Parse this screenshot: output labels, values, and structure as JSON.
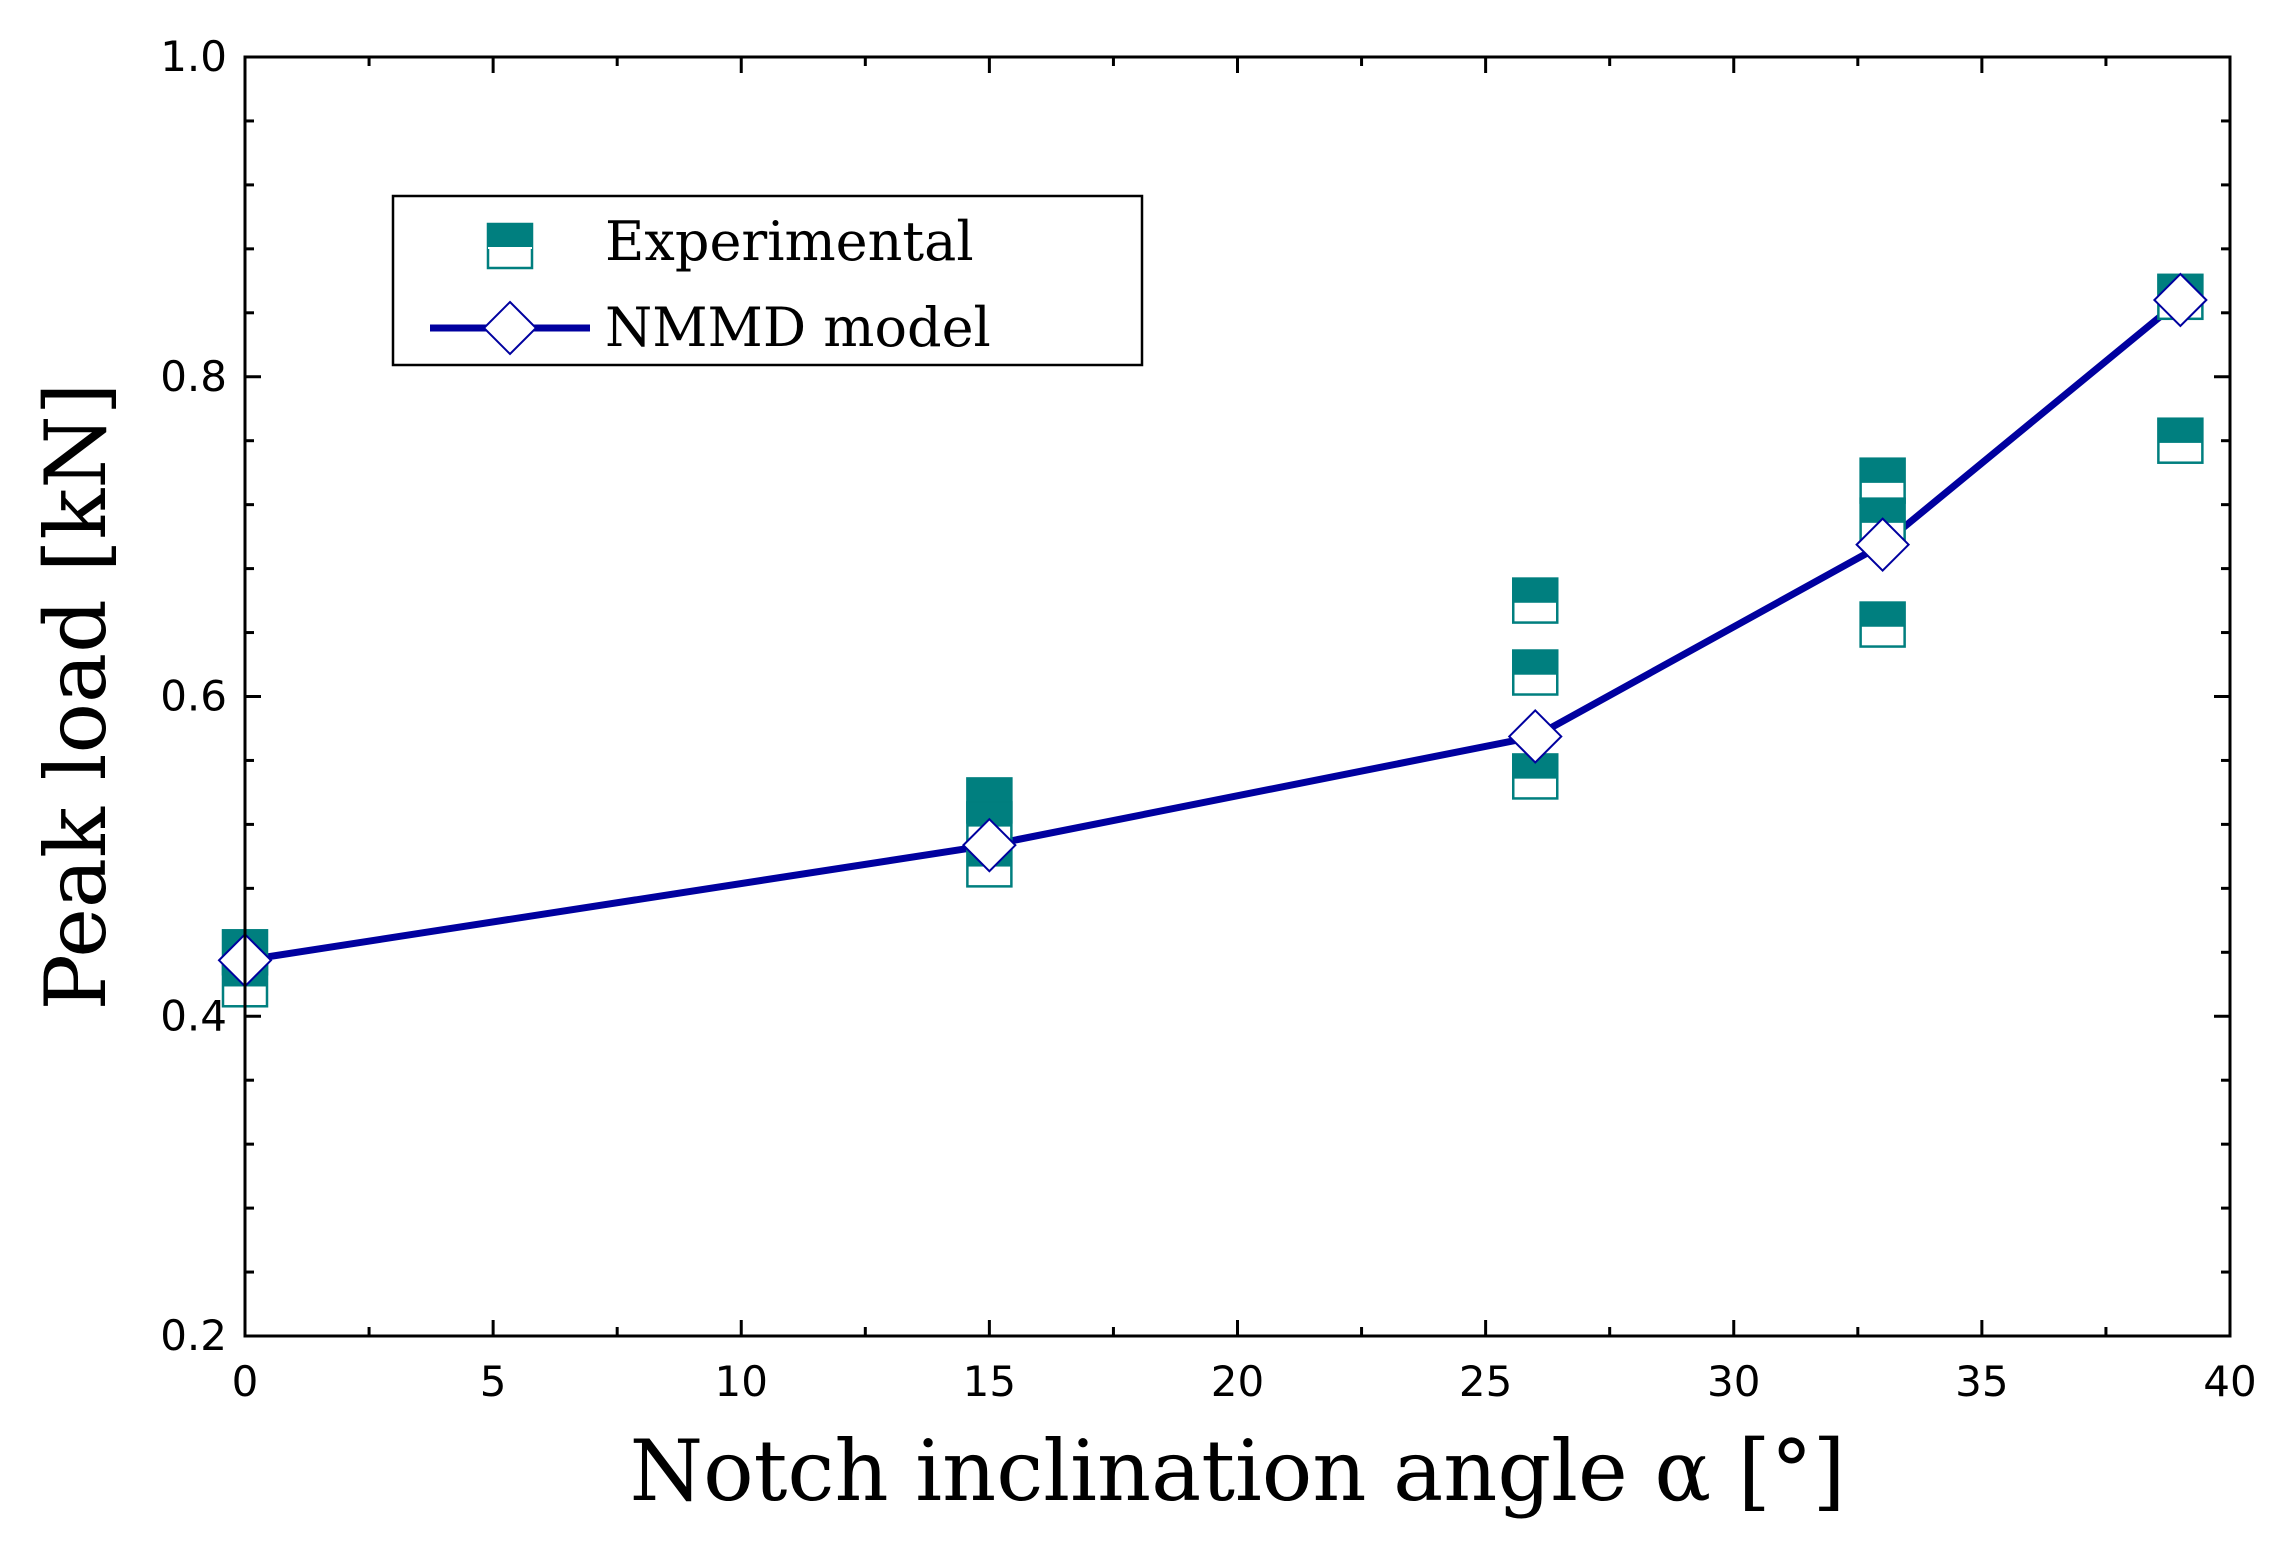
{
  "chart_data": {
    "type": "scatter",
    "xlabel": "Notch inclination angle α [°]",
    "ylabel": "Peak load [kN]",
    "xlim": [
      0,
      40
    ],
    "ylim": [
      0.2,
      1.0
    ],
    "x_ticks": [
      "0",
      "5",
      "10",
      "15",
      "20",
      "25",
      "30",
      "35",
      "40"
    ],
    "y_ticks": [
      "0.2",
      "0.4",
      "0.6",
      "0.8",
      "1.0"
    ],
    "grid": false,
    "legend_position": "top-left",
    "series": [
      {
        "name": "Experimental",
        "kind": "markers",
        "marker": "half-filled-square",
        "color": "#007f7f",
        "x": [
          0,
          0,
          15,
          15,
          15,
          26,
          26,
          26,
          33,
          33,
          33,
          39,
          39
        ],
        "y": [
          0.44,
          0.42,
          0.535,
          0.52,
          0.495,
          0.66,
          0.615,
          0.55,
          0.735,
          0.71,
          0.645,
          0.85,
          0.76
        ]
      },
      {
        "name": "NMMD model",
        "kind": "line-markers",
        "marker": "open-diamond",
        "color": "#00009f",
        "x": [
          0,
          15,
          26,
          33,
          39
        ],
        "y": [
          0.435,
          0.507,
          0.575,
          0.695,
          0.848
        ]
      }
    ]
  }
}
